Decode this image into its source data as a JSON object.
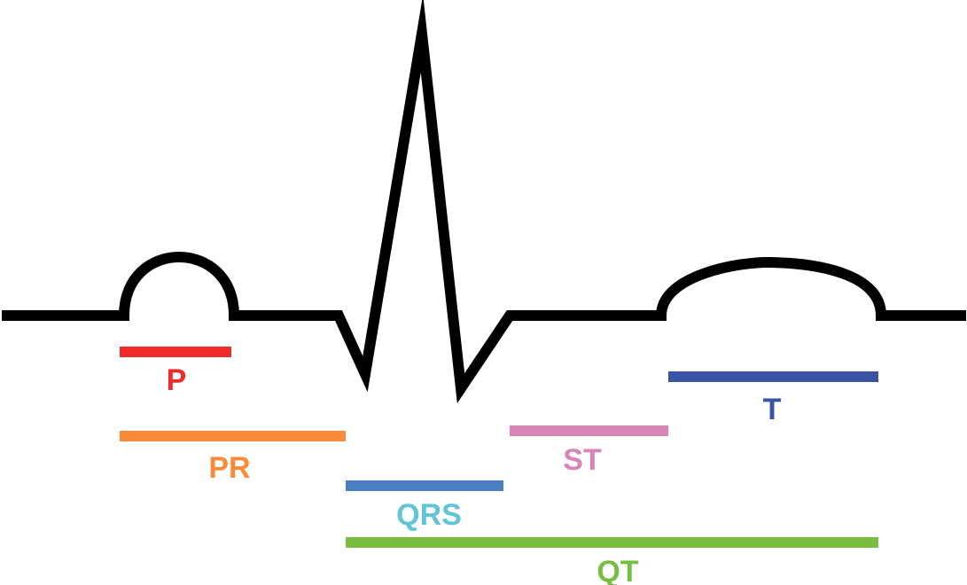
{
  "segments": {
    "p": {
      "label": "P",
      "color": "#ee2b2b"
    },
    "pr": {
      "label": "PR",
      "color": "#f98a38"
    },
    "qrs": {
      "label": "QRS",
      "color": "#4a7fc4",
      "label_color": "#62c4d8"
    },
    "st": {
      "label": "ST",
      "color": "#d884b8"
    },
    "t": {
      "label": "T",
      "color": "#3a53a4"
    },
    "qt": {
      "label": "QT",
      "color": "#79bd42"
    }
  },
  "trace": {
    "color": "#000000"
  }
}
